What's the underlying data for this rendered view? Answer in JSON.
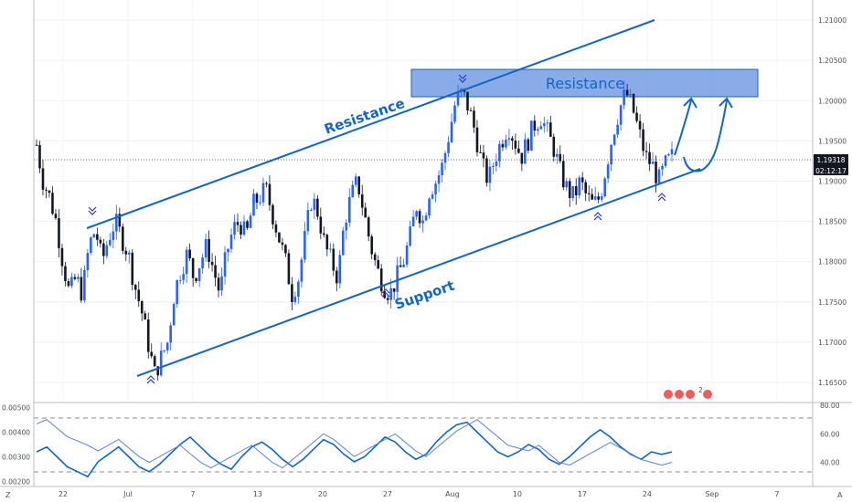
{
  "chart_data": [
    {
      "type": "candlestick",
      "title": "",
      "price_ticks": [
        "1.21000",
        "1.20500",
        "1.20000",
        "1.19500",
        "1.19000",
        "1.18500",
        "1.18000",
        "1.17500",
        "1.17000",
        "1.16500"
      ],
      "ylim": [
        1.1625,
        1.2125
      ],
      "date_ticks": [
        "22",
        "Jul",
        "7",
        "13",
        "20",
        "27",
        "Aug",
        "10",
        "17",
        "24",
        "Sep",
        "7"
      ],
      "last_price": "1.19318",
      "countdown": "02:12:17",
      "close_path": [
        1.1945,
        1.19,
        1.188,
        1.185,
        1.18,
        1.176,
        1.178,
        1.176,
        1.182,
        1.184,
        1.18,
        1.183,
        1.185,
        1.183,
        1.181,
        1.177,
        1.174,
        1.17,
        1.166,
        1.168,
        1.17,
        1.176,
        1.179,
        1.181,
        1.178,
        1.18,
        1.182,
        1.179,
        1.176,
        1.181,
        1.184,
        1.185,
        1.183,
        1.187,
        1.188,
        1.189,
        1.186,
        1.183,
        1.18,
        1.176,
        1.178,
        1.183,
        1.188,
        1.186,
        1.182,
        1.18,
        1.178,
        1.185,
        1.188,
        1.19,
        1.186,
        1.182,
        1.179,
        1.177,
        1.176,
        1.178,
        1.18,
        1.183,
        1.187,
        1.185,
        1.189,
        1.19,
        1.192,
        1.196,
        1.2,
        1.201,
        1.199,
        1.196,
        1.192,
        1.19,
        1.193,
        1.195,
        1.197,
        1.195,
        1.193,
        1.195,
        1.197,
        1.198,
        1.196,
        1.194,
        1.191,
        1.189,
        1.188,
        1.19,
        1.188,
        1.187,
        1.188,
        1.192,
        1.196,
        1.199,
        1.201,
        1.199,
        1.196,
        1.193,
        1.192,
        1.19,
        1.192,
        1.193
      ],
      "annotations": {
        "resistance_line_label": "Resistance",
        "resistance_zone_label": "Resistance",
        "support_label": "Support"
      }
    },
    {
      "type": "line",
      "title": "",
      "left_ticks": [
        "0.00500",
        "0.00400",
        "0.00300",
        "0.00200"
      ],
      "right_ticks": [
        "80.00",
        "60.00",
        "40.00"
      ],
      "left_ylim": [
        0.0018,
        0.0052
      ],
      "right_ylim": [
        23,
        82
      ],
      "levels": [
        70,
        30
      ],
      "series": [
        {
          "color": "#1565c0",
          "values": [
            0.0032,
            0.0034,
            0.003,
            0.0026,
            0.0024,
            0.0022,
            0.0028,
            0.0031,
            0.0034,
            0.003,
            0.0026,
            0.0024,
            0.0027,
            0.0031,
            0.0035,
            0.0038,
            0.0034,
            0.003,
            0.0027,
            0.0025,
            0.003,
            0.0034,
            0.0036,
            0.0033,
            0.0029,
            0.0026,
            0.0029,
            0.0033,
            0.0037,
            0.0035,
            0.0031,
            0.0028,
            0.003,
            0.0034,
            0.0038,
            0.0036,
            0.0032,
            0.0029,
            0.0031,
            0.0036,
            0.004,
            0.0043,
            0.0044,
            0.004,
            0.0036,
            0.0032,
            0.003,
            0.0032,
            0.0035,
            0.0033,
            0.0029,
            0.0027,
            0.003,
            0.0034,
            0.0038,
            0.0041,
            0.0038,
            0.0034,
            0.0031,
            0.0029,
            0.0032,
            0.0031,
            0.0032
          ]
        },
        {
          "color": "#5c7fd6",
          "values": [
            67,
            70,
            64,
            58,
            55,
            52,
            48,
            52,
            56,
            50,
            44,
            40,
            44,
            48,
            52,
            46,
            40,
            36,
            40,
            44,
            48,
            52,
            46,
            40,
            36,
            42,
            48,
            54,
            60,
            56,
            50,
            44,
            48,
            52,
            56,
            60,
            54,
            48,
            44,
            50,
            56,
            62,
            66,
            70,
            64,
            58,
            52,
            50,
            48,
            52,
            46,
            40,
            38,
            42,
            46,
            50,
            54,
            50,
            46,
            42,
            40,
            38,
            40
          ]
        }
      ]
    }
  ],
  "toolbar": {
    "zoom_label": "Z",
    "auto_label": "A"
  },
  "event_badges": "2"
}
